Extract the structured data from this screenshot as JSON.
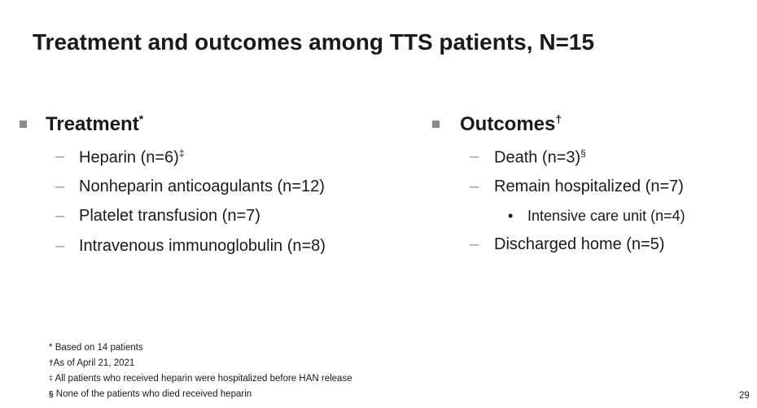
{
  "title": "Treatment and outcomes among TTS patients, N=15",
  "treatment": {
    "heading": "Treatment",
    "heading_mark": "*",
    "items": [
      {
        "text": "Heparin (n=6)",
        "sup": "‡"
      },
      {
        "text": "Nonheparin anticoagulants (n=12)"
      },
      {
        "text": "Platelet transfusion (n=7)"
      },
      {
        "text": "Intravenous immunoglobulin (n=8)"
      }
    ]
  },
  "outcomes": {
    "heading": "Outcomes",
    "heading_mark": "†",
    "items": [
      {
        "text": "Death (n=3)",
        "sup": "§"
      },
      {
        "text": "Remain hospitalized (n=7)",
        "subitems": [
          {
            "text": "Intensive care unit (n=4)"
          }
        ]
      },
      {
        "text": "Discharged home (n=5)"
      }
    ]
  },
  "footnotes": [
    {
      "symbol": "*",
      "text": "Based on 14 patients"
    },
    {
      "symbol": "†",
      "text": "As of April 21, 2021"
    },
    {
      "symbol": "‡",
      "text": "All patients who received heparin were hospitalized before HAN release"
    },
    {
      "symbol": "§",
      "text": "None of the patients who died received heparin"
    }
  ],
  "page_number": "29"
}
